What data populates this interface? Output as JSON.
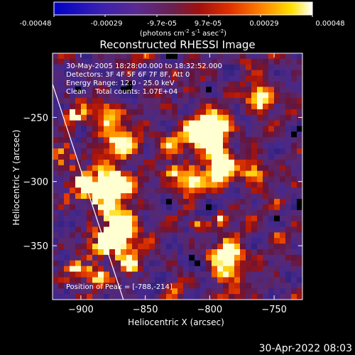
{
  "colorbar": {
    "ticks": [
      "-0.00048",
      "-0.00029",
      "-9.7e-05",
      "9.7e-05",
      "0.00029",
      "0.00048"
    ],
    "units_main": "(photons cm",
    "units_sup1": "-2",
    "units_mid": " s",
    "units_sup2": "-1",
    "units_tail": " asec",
    "units_sup3": "-2",
    "units_close": ")",
    "range": [
      -0.00048,
      0.00048
    ]
  },
  "info": {
    "line1": "30-May-2005 18:28:00.000 to 18:32:52.000",
    "line2": "Detectors: 3F 4F 5F 6F 7F 8F, Att 0",
    "line3": "Energy Range: 12.0 - 25.0 keV",
    "line4": "Clean    Total counts: 1.07E+04",
    "peak": "Position of Peak = [-788,-214]"
  },
  "footer": {
    "timestamp": "30-Apr-2022 08:03"
  },
  "colors": {
    "background": "#000000",
    "text": "#ffffff",
    "limb_line": "#ffffff"
  },
  "chart_data": {
    "type": "heatmap",
    "title": "Reconstructed RHESSI Image",
    "xlabel": "Heliocentric X (arcsec)",
    "ylabel": "Heliocentric Y (arcsec)",
    "xlim": [
      -922,
      -728
    ],
    "ylim": [
      -392,
      -200
    ],
    "xticks": [
      -900,
      -850,
      -800,
      -750
    ],
    "xtick_labels": [
      "−900",
      "−850",
      "−800",
      "−750"
    ],
    "yticks": [
      -250,
      -300,
      -350
    ],
    "ytick_labels": [
      "−250",
      "−300",
      "−350"
    ],
    "colormap": "blue-purple-red-yellow-white",
    "peak_position": [
      -788,
      -214
    ],
    "limb_line": {
      "x1": -923,
      "y1": -221,
      "x2": -867,
      "y2": -392
    }
  }
}
